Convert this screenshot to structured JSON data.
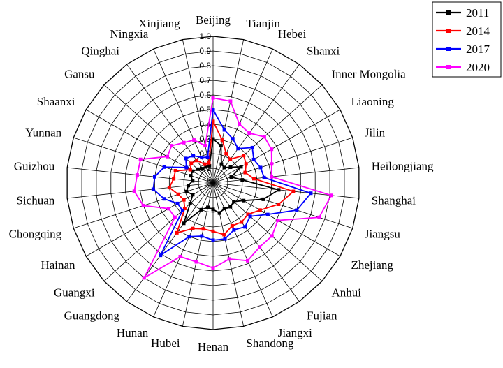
{
  "chart_data": {
    "type": "radar",
    "categories": [
      "Beijing",
      "Tianjin",
      "Hebei",
      "Shanxi",
      "Inner Mongolia",
      "Liaoning",
      "Jilin",
      "Heilongjiang",
      "Shanghai",
      "Jiangsu",
      "Zhejiang",
      "Anhui",
      "Fujian",
      "Jiangxi",
      "Shandong",
      "Henan",
      "Hubei",
      "Hunan",
      "Guangdong",
      "Guangxi",
      "Hainan",
      "Chongqing",
      "Sichuan",
      "Guizhou",
      "Yunnan",
      "Shaanxi",
      "Gansu",
      "Qinghai",
      "Ningxia",
      "Xinjiang"
    ],
    "rlim": [
      0,
      1.0
    ],
    "ticks": [
      "0",
      "0.1",
      "0.2",
      "0.3",
      "0.4",
      "0.5",
      "0.6",
      "0.7",
      "0.8",
      "0.9",
      "1.0"
    ],
    "grid": true,
    "legend_position": "top-right",
    "series": [
      {
        "name": "2011",
        "color": "#000000",
        "values": [
          0.3,
          0.26,
          0.14,
          0.13,
          0.16,
          0.22,
          0.13,
          0.2,
          0.45,
          0.36,
          0.24,
          0.19,
          0.2,
          0.19,
          0.21,
          0.18,
          0.17,
          0.2,
          0.34,
          0.21,
          0.16,
          0.19,
          0.17,
          0.14,
          0.16,
          0.16,
          0.14,
          0.12,
          0.12,
          0.12
        ]
      },
      {
        "name": "2014",
        "color": "#ff0000",
        "values": [
          0.42,
          0.3,
          0.22,
          0.2,
          0.28,
          0.26,
          0.23,
          0.28,
          0.55,
          0.47,
          0.37,
          0.32,
          0.33,
          0.32,
          0.36,
          0.33,
          0.32,
          0.34,
          0.42,
          0.26,
          0.23,
          0.25,
          0.3,
          0.27,
          0.27,
          0.18,
          0.2,
          0.19,
          0.14,
          0.14
        ]
      },
      {
        "name": "2017",
        "color": "#0000ff",
        "values": [
          0.5,
          0.37,
          0.33,
          0.29,
          0.36,
          0.32,
          0.34,
          0.35,
          0.67,
          0.6,
          0.43,
          0.34,
          0.37,
          0.35,
          0.39,
          0.39,
          0.37,
          0.4,
          0.61,
          0.28,
          0.28,
          0.35,
          0.41,
          0.4,
          0.35,
          0.21,
          0.25,
          0.23,
          0.19,
          0.18
        ]
      },
      {
        "name": "2020",
        "color": "#ff00ff",
        "values": [
          0.58,
          0.57,
          0.44,
          0.42,
          0.47,
          0.46,
          0.42,
          0.4,
          0.81,
          0.76,
          0.51,
          0.54,
          0.54,
          0.58,
          0.53,
          0.58,
          0.55,
          0.55,
          0.8,
          0.35,
          0.35,
          0.5,
          0.54,
          0.52,
          0.52,
          0.36,
          0.38,
          0.34,
          0.32,
          0.26
        ]
      }
    ]
  }
}
